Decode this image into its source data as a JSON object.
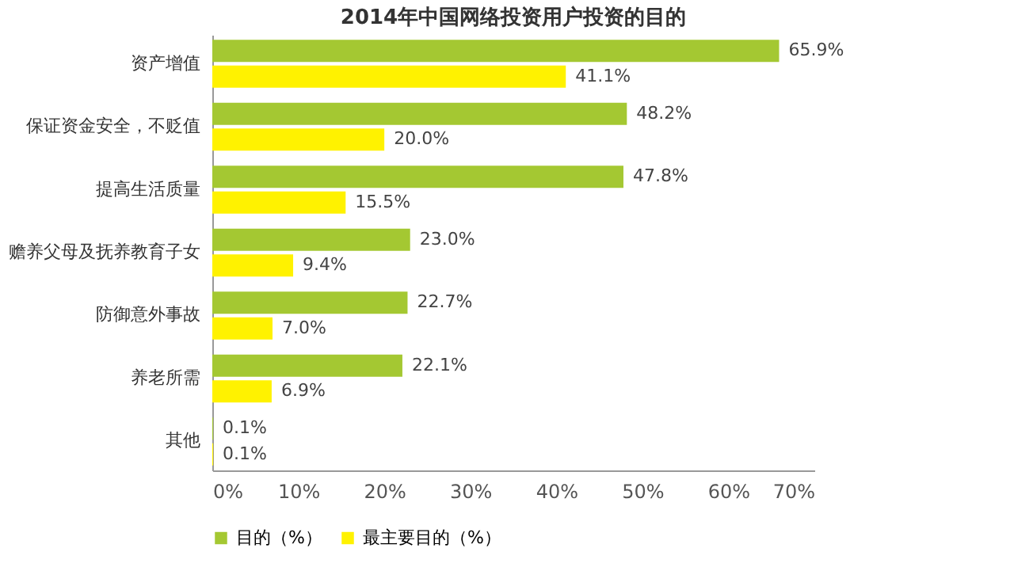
{
  "chart_data": {
    "type": "bar",
    "orientation": "horizontal",
    "title": "2014年中国网络投资用户投资的目的",
    "categories": [
      "资产增值",
      "保证资金安全，不贬值",
      "提高生活质量",
      "赡养父母及抚养教育子女",
      "防御意外事故",
      "养老所需",
      "其他"
    ],
    "series": [
      {
        "name": "目的（%）",
        "color": "#a4c832",
        "values": [
          65.9,
          48.2,
          47.8,
          23.0,
          22.7,
          22.1,
          0.1
        ],
        "value_labels": [
          "65.9%",
          "48.2%",
          "47.8%",
          "23.0%",
          "22.7%",
          "22.1%",
          "0.1%"
        ]
      },
      {
        "name": "最主要目的（%）",
        "color": "#fff200",
        "values": [
          41.1,
          20.0,
          15.5,
          9.4,
          7.0,
          6.9,
          0.1
        ],
        "value_labels": [
          "41.1%",
          "20.0%",
          "15.5%",
          "9.4%",
          "7.0%",
          "6.9%",
          "0.1%"
        ]
      }
    ],
    "xlim": [
      0,
      70
    ],
    "xticks": [
      {
        "value": 0,
        "label": "0%"
      },
      {
        "value": 10,
        "label": "10%"
      },
      {
        "value": 20,
        "label": "20%"
      },
      {
        "value": 30,
        "label": "30%"
      },
      {
        "value": 40,
        "label": "40%"
      },
      {
        "value": 50,
        "label": "50%"
      },
      {
        "value": 60,
        "label": "60%"
      },
      {
        "value": 70,
        "label": "70%"
      }
    ],
    "grid": false,
    "legend": "bottom"
  }
}
